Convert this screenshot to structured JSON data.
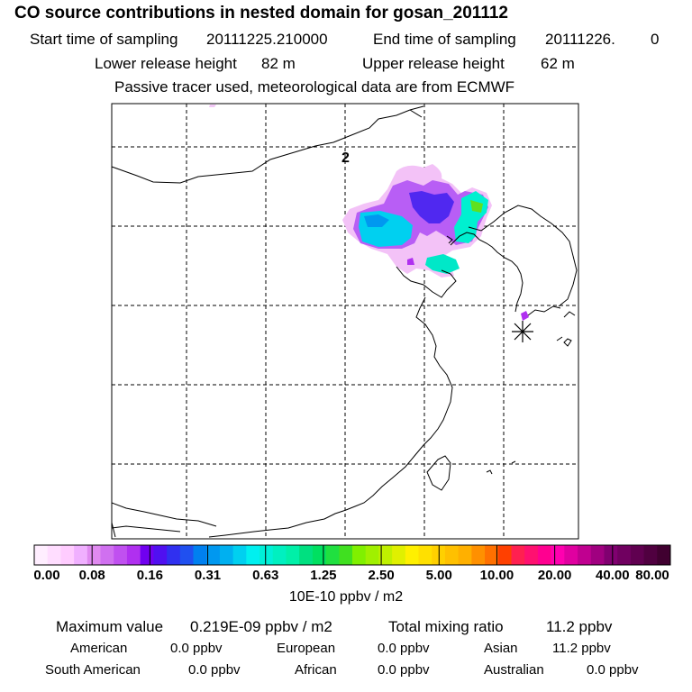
{
  "header": {
    "title": "CO  source contributions in nested domain for gosan_201112",
    "start_label": "Start time of sampling",
    "start_value": "20111225.210000",
    "end_label": "End time of sampling",
    "end_value": "20111226.",
    "end_value_extra": "0",
    "lower_label": "Lower release height",
    "lower_value": "82 m",
    "upper_label": "Upper release height",
    "upper_value": "62 m",
    "passive": "Passive tracer used, meteorological data are from ECMWF"
  },
  "map": {
    "grid_label": "2",
    "station_marker": "gosan station (star)"
  },
  "legend": {
    "ticks": [
      "0.00",
      "0.08",
      "0.16",
      "0.31",
      "0.63",
      "1.25",
      "2.50",
      "5.00",
      "10.00",
      "20.00",
      "40.00",
      "80.00"
    ],
    "colors": [
      "#ffeeff",
      "#ffddff",
      "#ffccff",
      "#f0b0ff",
      "#e08af0",
      "#d070f0",
      "#c050f0",
      "#b030f0",
      "#7000f0",
      "#5010f0",
      "#3030f0",
      "#2050f0",
      "#0080f0",
      "#0098f0",
      "#00b0f0",
      "#00d0f0",
      "#00f0f0",
      "#00f0d8",
      "#00f0c0",
      "#00f0a8",
      "#00e080",
      "#00e060",
      "#20e040",
      "#40e020",
      "#80f000",
      "#a0f000",
      "#c0f000",
      "#e0f000",
      "#fff000",
      "#ffe000",
      "#ffd000",
      "#ffc000",
      "#ffb000",
      "#ff9000",
      "#ff7000",
      "#ff4000",
      "#ff2050",
      "#ff1070",
      "#ff0090",
      "#ff00b0",
      "#e000a0",
      "#c00090",
      "#a00080",
      "#800070",
      "#700060",
      "#600050",
      "#500040",
      "#400030"
    ],
    "units": "10E-10 ppbv / m2"
  },
  "stats": {
    "max_label": "Maximum value",
    "max_value": "0.219E-09 ppbv / m2",
    "total_label": "Total mixing ratio",
    "total_value": "11.2 ppbv",
    "regions": [
      {
        "name": "American",
        "value": "0.0 ppbv"
      },
      {
        "name": "European",
        "value": "0.0 ppbv"
      },
      {
        "name": "Asian",
        "value": "11.2 ppbv"
      },
      {
        "name": "South American",
        "value": "0.0 ppbv"
      },
      {
        "name": "African",
        "value": "0.0 ppbv"
      },
      {
        "name": "Australian",
        "value": "0.0 ppbv"
      }
    ]
  }
}
